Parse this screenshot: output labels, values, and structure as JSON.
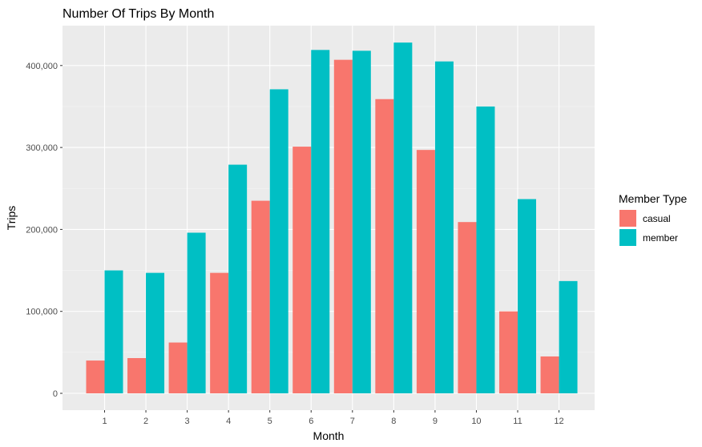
{
  "chart_data": {
    "type": "bar",
    "title": "Number Of Trips By Month",
    "xlabel": "Month",
    "ylabel": "Trips",
    "categories": [
      "1",
      "2",
      "3",
      "4",
      "5",
      "6",
      "7",
      "8",
      "9",
      "10",
      "11",
      "12"
    ],
    "series": [
      {
        "name": "casual",
        "color": "#F8766D",
        "values": [
          40000,
          43000,
          62000,
          147000,
          235000,
          301000,
          407000,
          359000,
          297000,
          209000,
          100000,
          45000
        ]
      },
      {
        "name": "member",
        "color": "#00BFC4",
        "values": [
          150000,
          147000,
          196000,
          279000,
          371000,
          419000,
          418000,
          428000,
          405000,
          350000,
          237000,
          137000
        ]
      }
    ],
    "yticks": [
      0,
      100000,
      200000,
      300000,
      400000
    ],
    "ytick_labels": [
      "0",
      "100,000",
      "200,000",
      "300,000",
      "400,000"
    ],
    "ylim": [
      0,
      440000
    ],
    "grid": true,
    "legend": {
      "title": "Member Type",
      "position": "right"
    },
    "panel_color": "#EBEBEB"
  }
}
